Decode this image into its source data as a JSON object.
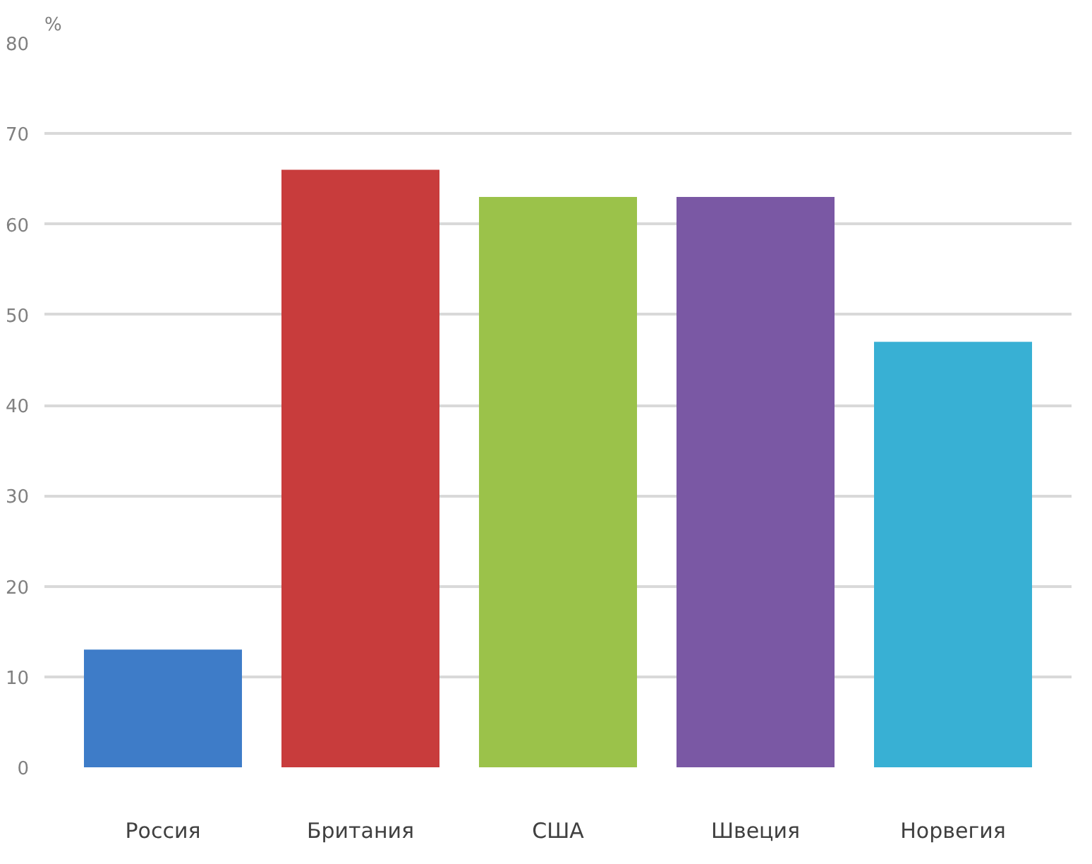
{
  "chart_data": {
    "type": "bar",
    "ylabel": "%",
    "categories": [
      "Россия",
      "Британия",
      "США",
      "Швеция",
      "Норвегия"
    ],
    "values": [
      13,
      66,
      63,
      63,
      47
    ],
    "colors": [
      "#3e7cc8",
      "#c83c3c",
      "#9bc24a",
      "#7a58a4",
      "#38b0d4"
    ],
    "ylim": [
      0,
      80
    ],
    "yticks": [
      0,
      10,
      20,
      30,
      40,
      50,
      60,
      70,
      80
    ],
    "grid": "y"
  }
}
